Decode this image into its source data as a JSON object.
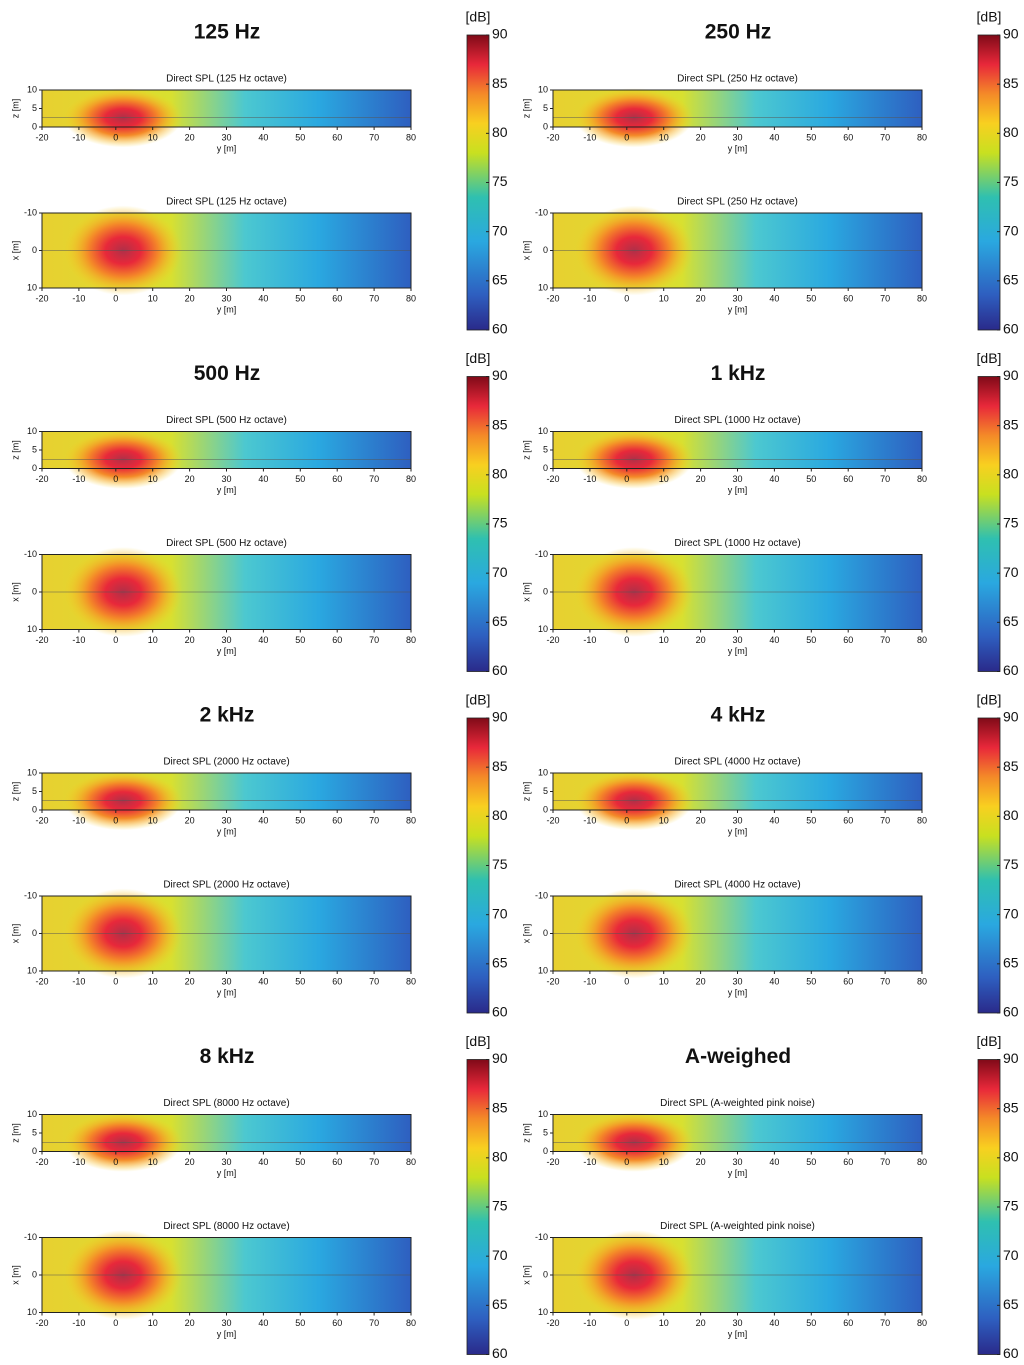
{
  "chart_data": [
    {
      "type": "heatmap",
      "title": "125 Hz",
      "colorbar": {
        "label": "[dB]",
        "lim": [
          60,
          90
        ],
        "ticks": [
          60,
          65,
          70,
          75,
          80,
          85,
          90
        ]
      },
      "plots": [
        {
          "title": "Direct SPL (125 Hz octave)",
          "xlabel": "y [m]",
          "ylabel": "z [m]",
          "xlim": [
            -20,
            80
          ],
          "xticks": [
            -20,
            -10,
            0,
            10,
            20,
            30,
            40,
            50,
            60,
            70,
            80
          ],
          "ylim": [
            0,
            10
          ],
          "yticks": [
            0,
            5,
            10
          ]
        },
        {
          "title": "Direct SPL (125 Hz octave)",
          "xlabel": "y [m]",
          "ylabel": "x [m]",
          "xlim": [
            -20,
            80
          ],
          "xticks": [
            -20,
            -10,
            0,
            10,
            20,
            30,
            40,
            50,
            60,
            70,
            80
          ],
          "ylim": [
            10,
            -10
          ],
          "yticks": [
            -10,
            0,
            10
          ]
        }
      ]
    },
    {
      "type": "heatmap",
      "title": "250 Hz",
      "colorbar": {
        "label": "[dB]",
        "lim": [
          60,
          90
        ],
        "ticks": [
          60,
          65,
          70,
          75,
          80,
          85,
          90
        ]
      },
      "plots": [
        {
          "title": "Direct SPL (250 Hz octave)",
          "xlabel": "y [m]",
          "ylabel": "z [m]",
          "xlim": [
            -20,
            80
          ],
          "xticks": [
            -20,
            -10,
            0,
            10,
            20,
            30,
            40,
            50,
            60,
            70,
            80
          ],
          "ylim": [
            0,
            10
          ],
          "yticks": [
            0,
            5,
            10
          ]
        },
        {
          "title": "Direct SPL (250 Hz octave)",
          "xlabel": "y [m]",
          "ylabel": "x [m]",
          "xlim": [
            -20,
            80
          ],
          "xticks": [
            -20,
            -10,
            0,
            10,
            20,
            30,
            40,
            50,
            60,
            70,
            80
          ],
          "ylim": [
            10,
            -10
          ],
          "yticks": [
            -10,
            0,
            10
          ]
        }
      ]
    },
    {
      "type": "heatmap",
      "title": "500 Hz",
      "colorbar": {
        "label": "[dB]",
        "lim": [
          60,
          90
        ],
        "ticks": [
          60,
          65,
          70,
          75,
          80,
          85,
          90
        ]
      },
      "plots": [
        {
          "title": "Direct SPL (500 Hz octave)",
          "xlabel": "y [m]",
          "ylabel": "z [m]",
          "xlim": [
            -20,
            80
          ],
          "xticks": [
            -20,
            -10,
            0,
            10,
            20,
            30,
            40,
            50,
            60,
            70,
            80
          ],
          "ylim": [
            0,
            10
          ],
          "yticks": [
            0,
            5,
            10
          ]
        },
        {
          "title": "Direct SPL (500 Hz octave)",
          "xlabel": "y [m]",
          "ylabel": "x [m]",
          "xlim": [
            -20,
            80
          ],
          "xticks": [
            -20,
            -10,
            0,
            10,
            20,
            30,
            40,
            50,
            60,
            70,
            80
          ],
          "ylim": [
            10,
            -10
          ],
          "yticks": [
            -10,
            0,
            10
          ]
        }
      ]
    },
    {
      "type": "heatmap",
      "title": "1 kHz",
      "colorbar": {
        "label": "[dB]",
        "lim": [
          60,
          90
        ],
        "ticks": [
          60,
          65,
          70,
          75,
          80,
          85,
          90
        ]
      },
      "plots": [
        {
          "title": "Direct SPL (1000 Hz octave)",
          "xlabel": "y [m]",
          "ylabel": "z [m]",
          "xlim": [
            -20,
            80
          ],
          "xticks": [
            -20,
            -10,
            0,
            10,
            20,
            30,
            40,
            50,
            60,
            70,
            80
          ],
          "ylim": [
            0,
            10
          ],
          "yticks": [
            0,
            5,
            10
          ]
        },
        {
          "title": "Direct SPL (1000 Hz octave)",
          "xlabel": "y [m]",
          "ylabel": "x [m]",
          "xlim": [
            -20,
            80
          ],
          "xticks": [
            -20,
            -10,
            0,
            10,
            20,
            30,
            40,
            50,
            60,
            70,
            80
          ],
          "ylim": [
            10,
            -10
          ],
          "yticks": [
            -10,
            0,
            10
          ]
        }
      ]
    },
    {
      "type": "heatmap",
      "title": "2 kHz",
      "colorbar": {
        "label": "[dB]",
        "lim": [
          60,
          90
        ],
        "ticks": [
          60,
          65,
          70,
          75,
          80,
          85,
          90
        ]
      },
      "plots": [
        {
          "title": "Direct SPL (2000 Hz octave)",
          "xlabel": "y [m]",
          "ylabel": "z [m]",
          "xlim": [
            -20,
            80
          ],
          "xticks": [
            -20,
            -10,
            0,
            10,
            20,
            30,
            40,
            50,
            60,
            70,
            80
          ],
          "ylim": [
            0,
            10
          ],
          "yticks": [
            0,
            5,
            10
          ]
        },
        {
          "title": "Direct SPL (2000 Hz octave)",
          "xlabel": "y [m]",
          "ylabel": "x [m]",
          "xlim": [
            -20,
            80
          ],
          "xticks": [
            -20,
            -10,
            0,
            10,
            20,
            30,
            40,
            50,
            60,
            70,
            80
          ],
          "ylim": [
            10,
            -10
          ],
          "yticks": [
            -10,
            0,
            10
          ]
        }
      ]
    },
    {
      "type": "heatmap",
      "title": "4 kHz",
      "colorbar": {
        "label": "[dB]",
        "lim": [
          60,
          90
        ],
        "ticks": [
          60,
          65,
          70,
          75,
          80,
          85,
          90
        ]
      },
      "plots": [
        {
          "title": "Direct SPL (4000 Hz octave)",
          "xlabel": "y [m]",
          "ylabel": "z [m]",
          "xlim": [
            -20,
            80
          ],
          "xticks": [
            -20,
            -10,
            0,
            10,
            20,
            30,
            40,
            50,
            60,
            70,
            80
          ],
          "ylim": [
            0,
            10
          ],
          "yticks": [
            0,
            5,
            10
          ]
        },
        {
          "title": "Direct SPL (4000 Hz octave)",
          "xlabel": "y [m]",
          "ylabel": "x [m]",
          "xlim": [
            -20,
            80
          ],
          "xticks": [
            -20,
            -10,
            0,
            10,
            20,
            30,
            40,
            50,
            60,
            70,
            80
          ],
          "ylim": [
            10,
            -10
          ],
          "yticks": [
            -10,
            0,
            10
          ]
        }
      ]
    },
    {
      "type": "heatmap",
      "title": "8 kHz",
      "colorbar": {
        "label": "[dB]",
        "lim": [
          60,
          90
        ],
        "ticks": [
          60,
          65,
          70,
          75,
          80,
          85,
          90
        ]
      },
      "plots": [
        {
          "title": "Direct SPL (8000 Hz octave)",
          "xlabel": "y [m]",
          "ylabel": "z [m]",
          "xlim": [
            -20,
            80
          ],
          "xticks": [
            -20,
            -10,
            0,
            10,
            20,
            30,
            40,
            50,
            60,
            70,
            80
          ],
          "ylim": [
            0,
            10
          ],
          "yticks": [
            0,
            5,
            10
          ]
        },
        {
          "title": "Direct SPL (8000 Hz octave)",
          "xlabel": "y [m]",
          "ylabel": "x [m]",
          "xlim": [
            -20,
            80
          ],
          "xticks": [
            -20,
            -10,
            0,
            10,
            20,
            30,
            40,
            50,
            60,
            70,
            80
          ],
          "ylim": [
            10,
            -10
          ],
          "yticks": [
            -10,
            0,
            10
          ]
        }
      ]
    },
    {
      "type": "heatmap",
      "title": "A-weighed",
      "colorbar": {
        "label": "[dB]",
        "lim": [
          60,
          90
        ],
        "ticks": [
          60,
          65,
          70,
          75,
          80,
          85,
          90
        ]
      },
      "plots": [
        {
          "title": "Direct SPL (A-weighted pink noise)",
          "xlabel": "y [m]",
          "ylabel": "z [m]",
          "xlim": [
            -20,
            80
          ],
          "xticks": [
            -20,
            -10,
            0,
            10,
            20,
            30,
            40,
            50,
            60,
            70,
            80
          ],
          "ylim": [
            0,
            10
          ],
          "yticks": [
            0,
            5,
            10
          ]
        },
        {
          "title": "Direct SPL (A-weighted pink noise)",
          "xlabel": "y [m]",
          "ylabel": "x [m]",
          "xlim": [
            -20,
            80
          ],
          "xticks": [
            -20,
            -10,
            0,
            10,
            20,
            30,
            40,
            50,
            60,
            70,
            80
          ],
          "ylim": [
            10,
            -10
          ],
          "yticks": [
            -10,
            0,
            10
          ]
        }
      ]
    }
  ]
}
